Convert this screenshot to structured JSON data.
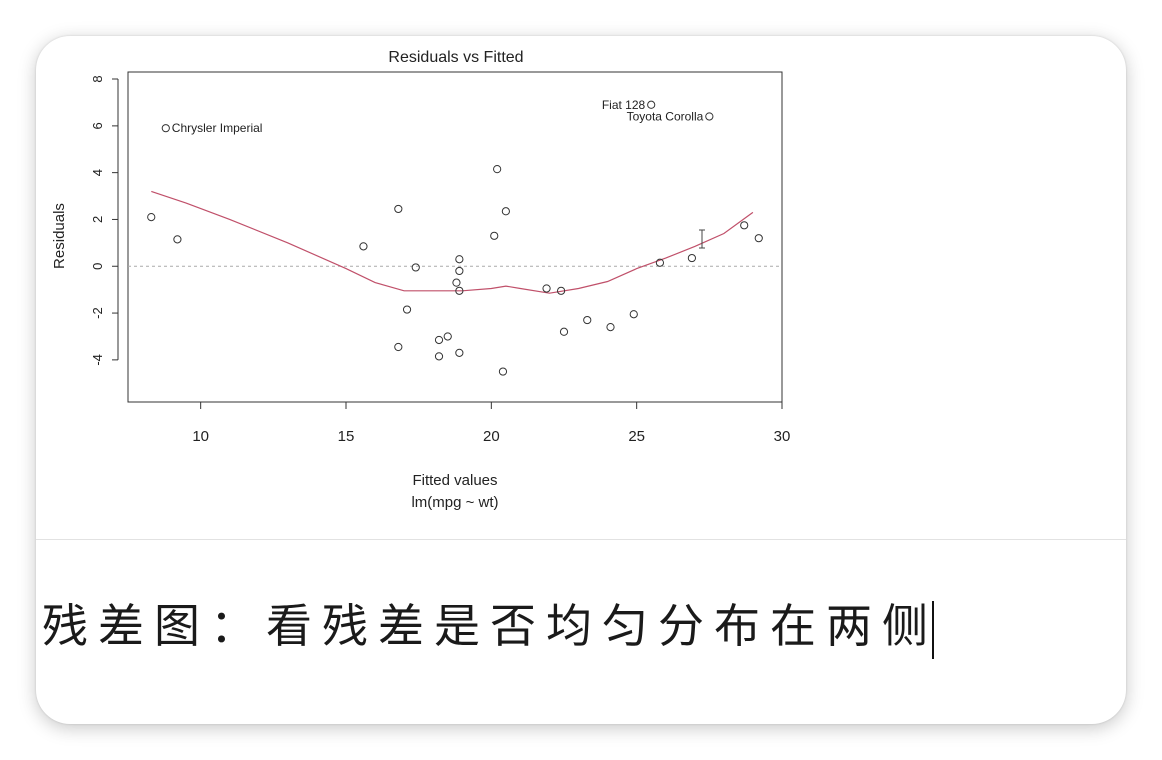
{
  "caption": "残差图：看残差是否均匀分布在两侧",
  "chart_data": {
    "type": "scatter",
    "title": "Residuals vs Fitted",
    "xlabel": "Fitted values",
    "subtitle": "lm(mpg ~ wt)",
    "ylabel": "Residuals",
    "xlim": [
      7.5,
      30
    ],
    "ylim": [
      -5.8,
      8.3
    ],
    "x_ticks": [
      10,
      15,
      20,
      25,
      30
    ],
    "y_ticks": [
      -4,
      -2,
      0,
      2,
      4,
      6,
      8
    ],
    "reference_line": 0,
    "points": [
      {
        "x": 8.3,
        "y": 2.1
      },
      {
        "x": 8.8,
        "y": 5.9,
        "label": "Chrysler Imperial"
      },
      {
        "x": 9.2,
        "y": 1.15
      },
      {
        "x": 15.6,
        "y": 0.85
      },
      {
        "x": 16.8,
        "y": 2.45
      },
      {
        "x": 16.8,
        "y": -3.45
      },
      {
        "x": 17.1,
        "y": -1.85
      },
      {
        "x": 17.4,
        "y": -0.05
      },
      {
        "x": 18.2,
        "y": -3.15
      },
      {
        "x": 18.2,
        "y": -3.85
      },
      {
        "x": 18.5,
        "y": -3.0
      },
      {
        "x": 18.8,
        "y": -0.7
      },
      {
        "x": 18.9,
        "y": -1.05
      },
      {
        "x": 18.9,
        "y": -0.2
      },
      {
        "x": 18.9,
        "y": 0.3
      },
      {
        "x": 18.9,
        "y": -3.7
      },
      {
        "x": 20.1,
        "y": 1.3
      },
      {
        "x": 20.2,
        "y": 4.15
      },
      {
        "x": 20.4,
        "y": -4.5
      },
      {
        "x": 20.5,
        "y": 2.35
      },
      {
        "x": 21.9,
        "y": -0.95
      },
      {
        "x": 22.4,
        "y": -1.05
      },
      {
        "x": 22.5,
        "y": -2.8
      },
      {
        "x": 23.3,
        "y": -2.3
      },
      {
        "x": 24.1,
        "y": -2.6
      },
      {
        "x": 24.9,
        "y": -2.05
      },
      {
        "x": 25.5,
        "y": 6.9,
        "label": "Fiat 128"
      },
      {
        "x": 25.8,
        "y": 0.15
      },
      {
        "x": 26.9,
        "y": 0.35
      },
      {
        "x": 27.5,
        "y": 6.4,
        "label": "Toyota Corolla"
      },
      {
        "x": 28.7,
        "y": 1.75
      },
      {
        "x": 29.2,
        "y": 1.2
      }
    ],
    "smooth_line": {
      "x": [
        8.3,
        9.5,
        11,
        13,
        15,
        16,
        17,
        18,
        19,
        20,
        20.5,
        21,
        22,
        23,
        24,
        25,
        26,
        27,
        28,
        29
      ],
      "y": [
        3.2,
        2.7,
        2.0,
        1.0,
        -0.1,
        -0.7,
        -1.05,
        -1.05,
        -1.05,
        -0.95,
        -0.85,
        -0.95,
        -1.15,
        -0.95,
        -0.65,
        -0.1,
        0.35,
        0.85,
        1.4,
        2.3
      ]
    },
    "grid": false,
    "colors": {
      "points": "#333333",
      "smooth_line": "#c0506a",
      "reference_line": "#aaaaaa"
    }
  }
}
